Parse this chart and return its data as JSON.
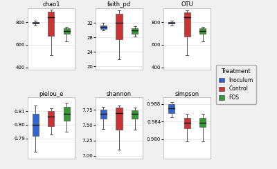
{
  "panels": [
    {
      "title": "chao1",
      "ylim": [
        380,
        920
      ],
      "yticks": [
        400,
        600,
        800
      ],
      "boxes": [
        {
          "color": "#3366CC",
          "whisker_lo": 770,
          "q1": 785,
          "median": 793,
          "q3": 800,
          "whisker_hi": 810
        },
        {
          "color": "#CC3333",
          "whisker_lo": 510,
          "q1": 680,
          "median": 840,
          "q3": 890,
          "whisker_hi": 910
        },
        {
          "color": "#339933",
          "whisker_lo": 630,
          "q1": 695,
          "median": 720,
          "q3": 745,
          "whisker_hi": 760
        }
      ]
    },
    {
      "title": "faith_pd",
      "ylim": [
        19,
        36
      ],
      "yticks": [
        20,
        24,
        28,
        32
      ],
      "boxes": [
        {
          "color": "#3366CC",
          "whisker_lo": 30.0,
          "q1": 30.3,
          "median": 30.8,
          "q3": 31.3,
          "whisker_hi": 32.0
        },
        {
          "color": "#CC3333",
          "whisker_lo": 22.0,
          "q1": 27.5,
          "median": 32.0,
          "q3": 34.5,
          "whisker_hi": 35.5
        },
        {
          "color": "#339933",
          "whisker_lo": 28.2,
          "q1": 29.0,
          "median": 30.0,
          "q3": 30.5,
          "whisker_hi": 31.0
        }
      ]
    },
    {
      "title": "OTU",
      "ylim": [
        380,
        920
      ],
      "yticks": [
        400,
        600,
        800
      ],
      "boxes": [
        {
          "color": "#3366CC",
          "whisker_lo": 770,
          "q1": 785,
          "median": 793,
          "q3": 800,
          "whisker_hi": 810
        },
        {
          "color": "#CC3333",
          "whisker_lo": 510,
          "q1": 670,
          "median": 840,
          "q3": 885,
          "whisker_hi": 905
        },
        {
          "color": "#339933",
          "whisker_lo": 630,
          "q1": 695,
          "median": 720,
          "q3": 745,
          "whisker_hi": 760
        }
      ]
    },
    {
      "title": "pielou_e",
      "ylim": [
        0.775,
        0.82
      ],
      "yticks": [
        0.79,
        0.8,
        0.81
      ],
      "boxes": [
        {
          "color": "#3366CC",
          "whisker_lo": 0.78,
          "q1": 0.792,
          "median": 0.8,
          "q3": 0.808,
          "whisker_hi": 0.814
        },
        {
          "color": "#CC3333",
          "whisker_lo": 0.793,
          "q1": 0.799,
          "median": 0.806,
          "q3": 0.81,
          "whisker_hi": 0.812
        },
        {
          "color": "#339933",
          "whisker_lo": 0.795,
          "q1": 0.803,
          "median": 0.808,
          "q3": 0.813,
          "whisker_hi": 0.816
        }
      ]
    },
    {
      "title": "shannon",
      "ylim": [
        6.95,
        7.95
      ],
      "yticks": [
        7.0,
        7.25,
        7.5,
        7.75
      ],
      "boxes": [
        {
          "color": "#3366CC",
          "whisker_lo": 7.44,
          "q1": 7.6,
          "median": 7.68,
          "q3": 7.75,
          "whisker_hi": 7.8
        },
        {
          "color": "#CC3333",
          "whisker_lo": 7.1,
          "q1": 7.42,
          "median": 7.7,
          "q3": 7.78,
          "whisker_hi": 7.82
        },
        {
          "color": "#339933",
          "whisker_lo": 7.43,
          "q1": 7.6,
          "median": 7.68,
          "q3": 7.74,
          "whisker_hi": 7.78
        }
      ]
    },
    {
      "title": "simpson",
      "ylim": [
        0.9755,
        0.9895
      ],
      "yticks": [
        0.98,
        0.984,
        0.988
      ],
      "boxes": [
        {
          "color": "#3366CC",
          "whisker_lo": 0.985,
          "q1": 0.986,
          "median": 0.987,
          "q3": 0.988,
          "whisker_hi": 0.9885
        },
        {
          "color": "#CC3333",
          "whisker_lo": 0.9795,
          "q1": 0.9825,
          "median": 0.9838,
          "q3": 0.9848,
          "whisker_hi": 0.9858
        },
        {
          "color": "#339933",
          "whisker_lo": 0.9795,
          "q1": 0.9828,
          "median": 0.9838,
          "q3": 0.9848,
          "whisker_hi": 0.9858
        }
      ]
    }
  ],
  "legend_labels": [
    "Inoculum",
    "Control",
    "FOS"
  ],
  "legend_colors": [
    "#3366CC",
    "#CC3333",
    "#339933"
  ],
  "bg_color": "#f0f0f0",
  "panel_bg": "#ffffff",
  "box_width": 0.4,
  "positions": [
    1,
    2,
    3
  ]
}
